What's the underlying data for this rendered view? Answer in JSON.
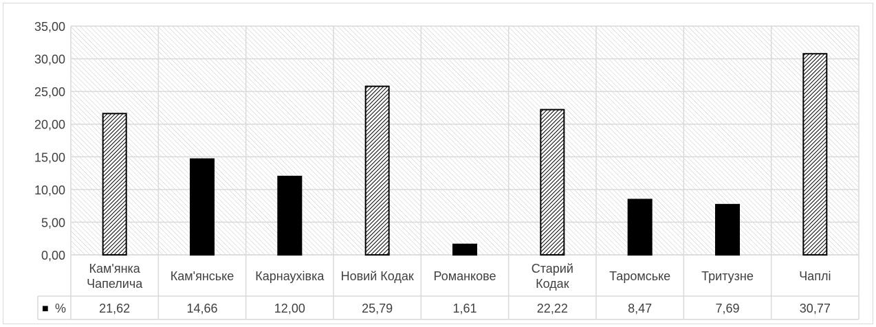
{
  "chart_data": {
    "type": "bar",
    "categories": [
      "Кам'янка Чапелича",
      "Кам'янське",
      "Карнаухівка",
      "Новий Кодак",
      "Романкове",
      "Старий Кодак",
      "Таромське",
      "Тритузне",
      "Чаплі"
    ],
    "category_lines": [
      [
        "Кам'янка",
        "Чапелича"
      ],
      [
        "Кам'янське"
      ],
      [
        "Карнаухівка"
      ],
      [
        "Новий Кодак"
      ],
      [
        "Романкове"
      ],
      [
        "Старий",
        "Кодак"
      ],
      [
        "Таромське"
      ],
      [
        "Тритузне"
      ],
      [
        "Чаплі"
      ]
    ],
    "series": [
      {
        "name": "%",
        "values": [
          21.62,
          14.66,
          12.0,
          25.79,
          1.61,
          22.22,
          8.47,
          7.69,
          30.77
        ],
        "value_labels": [
          "21,62",
          "14,66",
          "12,00",
          "25,79",
          "1,61",
          "22,22",
          "8,47",
          "7,69",
          "30,77"
        ],
        "fill_styles": [
          "hatched",
          "solid",
          "solid",
          "hatched",
          "solid",
          "hatched",
          "solid",
          "solid",
          "hatched"
        ]
      }
    ],
    "y_ticks": [
      "0,00",
      "5,00",
      "10,00",
      "15,00",
      "20,00",
      "25,00",
      "30,00",
      "35,00"
    ],
    "ylim": [
      0,
      35
    ],
    "y_step": 5,
    "grid": true,
    "plot_background": "diagonal-hatch",
    "data_table": true,
    "legend_key": "■",
    "colors": {
      "bar": "#000000",
      "grid": "#d9d9d9",
      "hatch_bg": "#c8c8c8",
      "text": "#404040"
    }
  }
}
